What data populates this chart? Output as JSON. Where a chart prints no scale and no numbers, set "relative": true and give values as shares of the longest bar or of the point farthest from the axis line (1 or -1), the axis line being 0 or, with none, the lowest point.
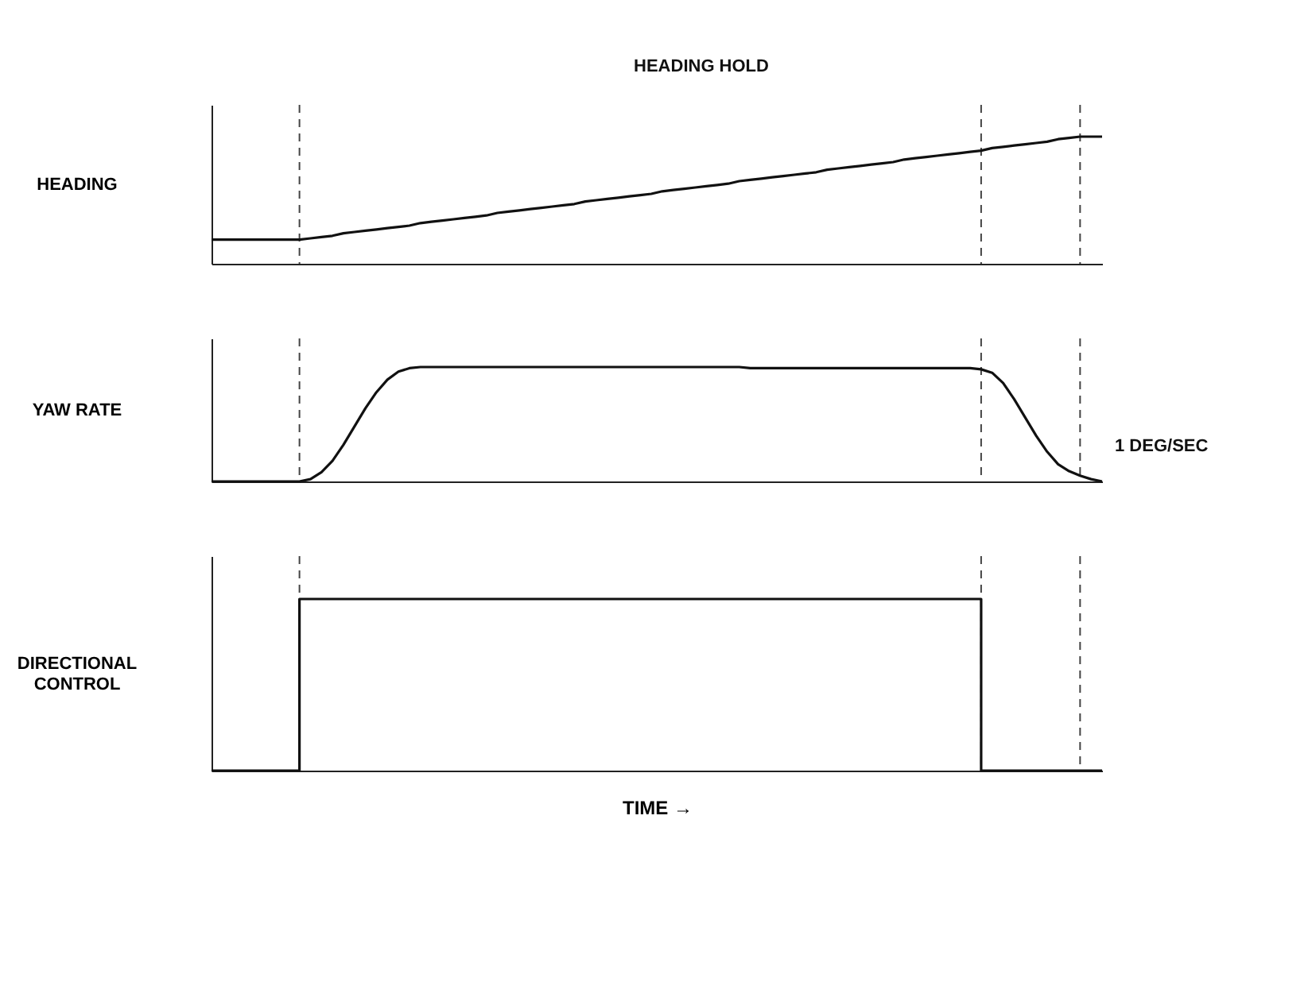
{
  "chart_data": [
    {
      "type": "line",
      "relative": true,
      "ylabel": "HEADING",
      "tick_labels": false,
      "grid": "x",
      "categories": [
        null,
        null,
        null,
        null,
        null,
        null,
        null,
        null,
        null,
        null,
        null,
        null,
        null,
        null,
        null,
        null,
        null,
        null,
        null,
        null,
        null,
        null,
        null,
        null,
        null,
        null,
        null,
        null,
        null,
        null,
        null,
        null,
        null,
        null,
        null,
        null,
        null,
        null,
        null,
        null,
        null,
        null,
        null,
        null,
        null,
        null,
        null,
        null,
        null,
        null,
        null,
        null,
        null,
        null,
        null,
        null,
        null,
        null,
        null,
        null,
        null,
        null,
        null,
        null,
        null,
        null,
        null,
        null,
        null,
        null,
        null,
        null,
        null,
        null,
        null,
        null,
        null,
        null,
        null,
        null,
        null,
        null
      ],
      "series": [
        {
          "color": "#111111",
          "values": [
            0.19,
            0.19,
            0.19,
            0.19,
            0.19,
            0.19,
            0.19,
            0.19,
            0.19,
            0.2,
            0.21,
            0.22,
            0.24,
            0.25,
            0.26,
            0.27,
            0.28,
            0.29,
            0.3,
            0.32,
            0.33,
            0.34,
            0.35,
            0.36,
            0.37,
            0.38,
            0.4,
            0.41,
            0.42,
            0.43,
            0.44,
            0.45,
            0.46,
            0.47,
            0.49,
            0.5,
            0.51,
            0.52,
            0.53,
            0.54,
            0.55,
            0.57,
            0.58,
            0.59,
            0.6,
            0.61,
            0.62,
            0.63,
            0.65,
            0.66,
            0.67,
            0.68,
            0.69,
            0.7,
            0.71,
            0.72,
            0.74,
            0.75,
            0.76,
            0.77,
            0.78,
            0.79,
            0.8,
            0.82,
            0.83,
            0.84,
            0.85,
            0.86,
            0.87,
            0.88,
            0.89,
            0.91,
            0.92,
            0.93,
            0.94,
            0.95,
            0.96,
            0.98,
            0.99,
            1,
            1,
            1
          ]
        }
      ],
      "annotations": [
        "HEADING HOLD"
      ]
    },
    {
      "type": "line",
      "relative": true,
      "ylabel": "YAW RATE",
      "tick_labels": false,
      "grid": "x",
      "categories": [
        null,
        null,
        null,
        null,
        null,
        null,
        null,
        null,
        null,
        null,
        null,
        null,
        null,
        null,
        null,
        null,
        null,
        null,
        null,
        null,
        null,
        null,
        null,
        null,
        null,
        null,
        null,
        null,
        null,
        null,
        null,
        null,
        null,
        null,
        null,
        null,
        null,
        null,
        null,
        null,
        null,
        null,
        null,
        null,
        null,
        null,
        null,
        null,
        null,
        null,
        null,
        null,
        null,
        null,
        null,
        null,
        null,
        null,
        null,
        null,
        null,
        null,
        null,
        null,
        null,
        null,
        null,
        null,
        null,
        null,
        null,
        null,
        null,
        null,
        null,
        null,
        null,
        null,
        null,
        null,
        null,
        null
      ],
      "series": [
        {
          "color": "#111111",
          "values": [
            0,
            0,
            0,
            0,
            0,
            0,
            0,
            0,
            0,
            0.02,
            0.08,
            0.18,
            0.32,
            0.48,
            0.64,
            0.78,
            0.89,
            0.96,
            0.99,
            1,
            1,
            1,
            1,
            1,
            1,
            1,
            1,
            1,
            1,
            1,
            1,
            1,
            1,
            1,
            1,
            1,
            1,
            1,
            1,
            1,
            1,
            1,
            1,
            1,
            1,
            1,
            1,
            1,
            1,
            0.99,
            0.99,
            0.99,
            0.99,
            0.99,
            0.99,
            0.99,
            0.99,
            0.99,
            0.99,
            0.99,
            0.99,
            0.99,
            0.99,
            0.99,
            0.99,
            0.99,
            0.99,
            0.99,
            0.99,
            0.99,
            0.98,
            0.95,
            0.86,
            0.72,
            0.56,
            0.4,
            0.26,
            0.15,
            0.09,
            0.05,
            0.02,
            0
          ]
        }
      ],
      "annotations": [
        "1 DEG/SEC"
      ]
    },
    {
      "type": "step",
      "relative": true,
      "ylabel": "DIRECTIONAL CONTROL",
      "xlabel": "TIME →",
      "tick_labels": false,
      "grid": "x",
      "categories": [
        null,
        null,
        null,
        null,
        null,
        null,
        null,
        null,
        null,
        null,
        null,
        null,
        null,
        null,
        null,
        null,
        null,
        null,
        null,
        null,
        null,
        null,
        null,
        null,
        null,
        null,
        null,
        null,
        null,
        null,
        null,
        null,
        null,
        null,
        null,
        null,
        null,
        null,
        null,
        null,
        null,
        null,
        null,
        null,
        null,
        null,
        null,
        null,
        null,
        null,
        null,
        null,
        null,
        null,
        null,
        null,
        null,
        null,
        null,
        null,
        null,
        null,
        null,
        null,
        null,
        null,
        null,
        null,
        null,
        null,
        null,
        null,
        null,
        null,
        null,
        null,
        null,
        null,
        null,
        null,
        null,
        null
      ],
      "series": [
        {
          "color": "#111111",
          "values": [
            0,
            0,
            0,
            0,
            0,
            0,
            0,
            0,
            1,
            1,
            1,
            1,
            1,
            1,
            1,
            1,
            1,
            1,
            1,
            1,
            1,
            1,
            1,
            1,
            1,
            1,
            1,
            1,
            1,
            1,
            1,
            1,
            1,
            1,
            1,
            1,
            1,
            1,
            1,
            1,
            1,
            1,
            1,
            1,
            1,
            1,
            1,
            1,
            1,
            1,
            1,
            1,
            1,
            1,
            1,
            1,
            1,
            1,
            1,
            1,
            1,
            1,
            1,
            1,
            1,
            1,
            1,
            1,
            1,
            1,
            0,
            0,
            0,
            0,
            0,
            0,
            0,
            0,
            0,
            0,
            0,
            0
          ]
        }
      ]
    }
  ]
}
